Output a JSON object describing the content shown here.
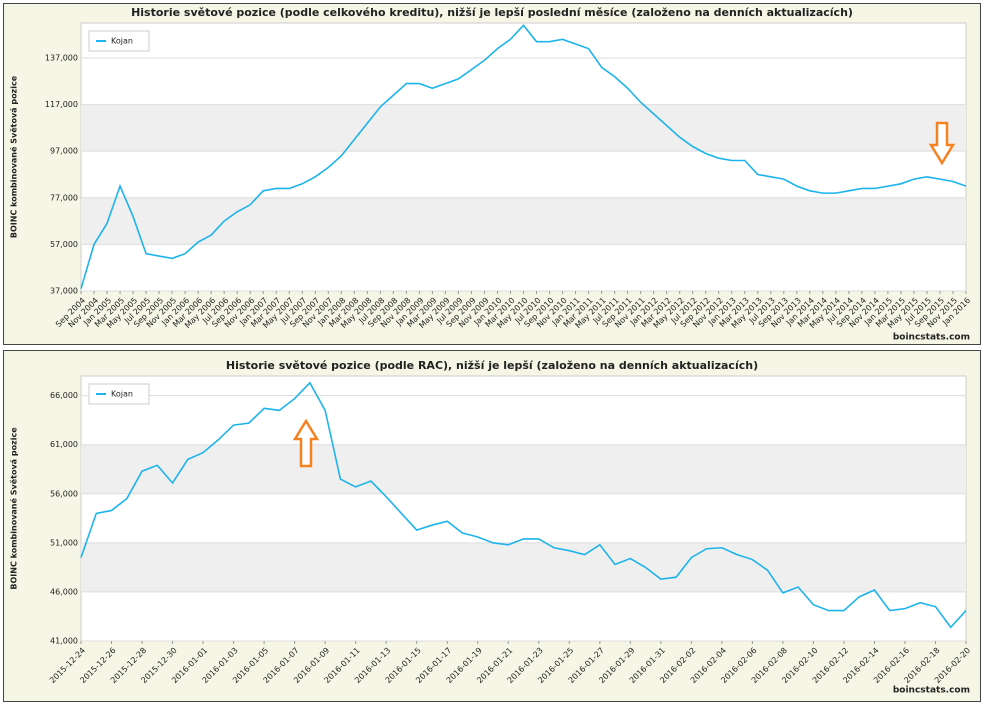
{
  "chart_data": [
    {
      "type": "line",
      "title": "Historie světové pozice (podle celkového kreditu), nižší je lepší poslední měsíce (založeno na denních aktualizacích)",
      "y_label": "BOINC kombinované Světová pozice",
      "source": "boincstats.com",
      "grid": true,
      "legend": "upper left",
      "categories": [
        "Sep 2004",
        "Nov 2004",
        "Jan 2005",
        "Mar 2005",
        "May 2005",
        "Jul 2005",
        "Sep 2005",
        "Nov 2005",
        "Jan 2006",
        "Mar 2006",
        "May 2006",
        "Jul 2006",
        "Sep 2006",
        "Nov 2006",
        "Jan 2007",
        "Mar 2007",
        "May 2007",
        "Jul 2007",
        "Sep 2007",
        "Nov 2007",
        "Jan 2008",
        "Mar 2008",
        "May 2008",
        "Jul 2008",
        "Sep 2008",
        "Nov 2008",
        "Jan 2009",
        "Mar 2009",
        "May 2009",
        "Jul 2009",
        "Sep 2009",
        "Nov 2009",
        "Jan 2010",
        "Mar 2010",
        "May 2010",
        "Jul 2010",
        "Sep 2010",
        "Nov 2010",
        "Jan 2011",
        "Mar 2011",
        "May 2011",
        "Jul 2011",
        "Sep 2011",
        "Nov 2011",
        "Jan 2012",
        "Mar 2012",
        "May 2012",
        "Jul 2012",
        "Sep 2012",
        "Nov 2012",
        "Jan 2013",
        "Mar 2013",
        "May 2013",
        "Jul 2013",
        "Sep 2013",
        "Nov 2013",
        "Jan 2014",
        "Mar 2014",
        "May 2014",
        "Jul 2014",
        "Sep 2014",
        "Nov 2014",
        "Jan 2015",
        "Mar 2015",
        "May 2015",
        "Jul 2015",
        "Sep 2015",
        "Nov 2015",
        "Jan 2016"
      ],
      "series": [
        {
          "name": "Kojan",
          "color": "#1db3ec",
          "values": [
            38000,
            57000,
            66000,
            82000,
            69000,
            53000,
            52000,
            51000,
            53000,
            58000,
            61000,
            67000,
            71000,
            74000,
            80000,
            81000,
            81000,
            83000,
            86000,
            90000,
            95000,
            102000,
            109000,
            116000,
            121000,
            126000,
            126000,
            124000,
            126000,
            128000,
            132000,
            136000,
            141000,
            145000,
            151000,
            144000,
            144000,
            145000,
            143000,
            141000,
            133000,
            129000,
            124000,
            118000,
            113000,
            108000,
            103000,
            99000,
            96000,
            94000,
            93000,
            93000,
            87000,
            86000,
            85000,
            82000,
            80000,
            79000,
            79000,
            80000,
            81000,
            81000,
            82000,
            83000,
            85000,
            86000,
            85000,
            84000,
            82000
          ]
        }
      ],
      "ylim": [
        37000,
        152000
      ],
      "yticks": [
        {
          "value": 37000,
          "label": "37,000"
        },
        {
          "value": 57000,
          "label": "57,000"
        },
        {
          "value": 77000,
          "label": "77,000"
        },
        {
          "value": 97000,
          "label": "97,000"
        },
        {
          "value": 117000,
          "label": "117,000"
        },
        {
          "value": 137000,
          "label": "137,000"
        }
      ]
    },
    {
      "type": "line",
      "title": "Historie světové pozice (podle RAC), nižší je lepší  (založeno na denních aktualizacích)",
      "y_label": "BOINC kombinované Světová pozice",
      "source": "boincstats.com",
      "grid": true,
      "legend": "upper left",
      "categories": [
        "2015-12-24",
        null,
        "2015-12-26",
        null,
        "2015-12-28",
        null,
        "2015-12-30",
        null,
        "2016-01-01",
        null,
        "2016-01-03",
        null,
        "2016-01-05",
        null,
        "2016-01-07",
        null,
        "2016-01-09",
        null,
        "2016-01-11",
        null,
        "2016-01-13",
        null,
        "2016-01-15",
        null,
        "2016-01-17",
        null,
        "2016-01-19",
        null,
        "2016-01-21",
        null,
        "2016-01-23",
        null,
        "2016-01-25",
        null,
        "2016-01-27",
        null,
        "2016-01-29",
        null,
        "2016-01-31",
        null,
        "2016-02-02",
        null,
        "2016-02-04",
        null,
        "2016-02-06",
        null,
        "2016-02-08",
        null,
        "2016-02-10",
        null,
        "2016-02-12",
        null,
        "2016-02-14",
        null,
        "2016-02-16",
        null,
        "2016-02-18",
        null,
        "2016-02-20"
      ],
      "series": [
        {
          "name": "Kojan",
          "color": "#1db3ec",
          "values": [
            49500,
            54000,
            54300,
            55500,
            58300,
            58900,
            57100,
            59500,
            60200,
            61500,
            63000,
            63200,
            64700,
            64500,
            65700,
            67300,
            64500,
            57500,
            56700,
            57300,
            55700,
            54000,
            52300,
            52800,
            53200,
            52000,
            51600,
            51000,
            50800,
            51400,
            51400,
            50500,
            50200,
            49800,
            50800,
            48800,
            49400,
            48500,
            47300,
            47500,
            49500,
            50400,
            50500,
            49800,
            49300,
            48200,
            45900,
            46500,
            44700,
            44100,
            44100,
            45500,
            46200,
            44100,
            44300,
            44900,
            44500,
            42400,
            44100
          ]
        }
      ],
      "ylim": [
        41000,
        68000
      ],
      "yticks": [
        {
          "value": 41000,
          "label": "41,000"
        },
        {
          "value": 46000,
          "label": "46,000"
        },
        {
          "value": 51000,
          "label": "51,000"
        },
        {
          "value": 56000,
          "label": "56,000"
        },
        {
          "value": 61000,
          "label": "61,000"
        },
        {
          "value": 66000,
          "label": "66,000"
        }
      ]
    }
  ]
}
